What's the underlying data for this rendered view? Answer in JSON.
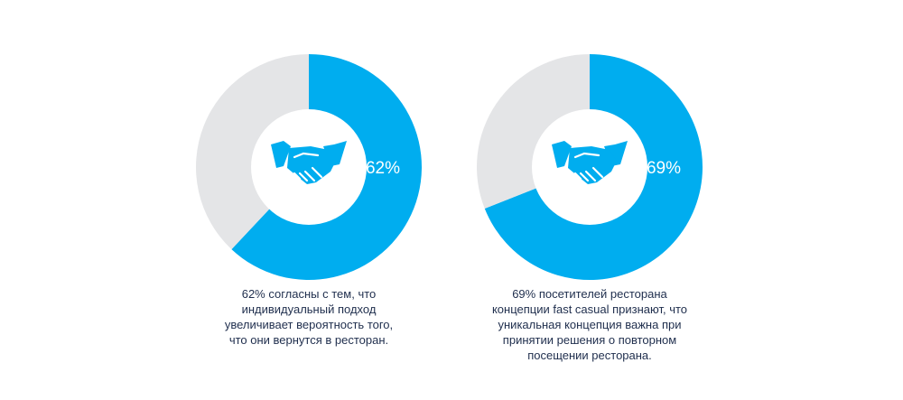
{
  "colors": {
    "accent": "#00adef",
    "remainder": "#e4e5e7",
    "hole": "#ffffff",
    "caption_text": "#1f2e4d"
  },
  "chart_data": [
    {
      "type": "pie",
      "variant": "donut",
      "start": "top",
      "direction": "clockwise",
      "slices": [
        {
          "value": 62,
          "color": "#00adef",
          "label": "62%"
        },
        {
          "value": 38,
          "color": "#e4e5e7"
        }
      ],
      "center_icon": "handshake-icon",
      "caption_lines": [
        "62% согласны с тем, что",
        "индивидуальный подход",
        "увеличивает вероятность того,",
        "что они вернутся в ресторан."
      ]
    },
    {
      "type": "pie",
      "variant": "donut",
      "start": "top",
      "direction": "clockwise",
      "slices": [
        {
          "value": 69,
          "color": "#00adef",
          "label": "69%"
        },
        {
          "value": 31,
          "color": "#e4e5e7"
        }
      ],
      "center_icon": "handshake-icon",
      "caption_lines": [
        "69% посетителей ресторана",
        "концепции fast casual признают, что",
        "уникальная концепция важна при",
        "принятии решения о повторном",
        "посещении ресторана."
      ]
    }
  ]
}
